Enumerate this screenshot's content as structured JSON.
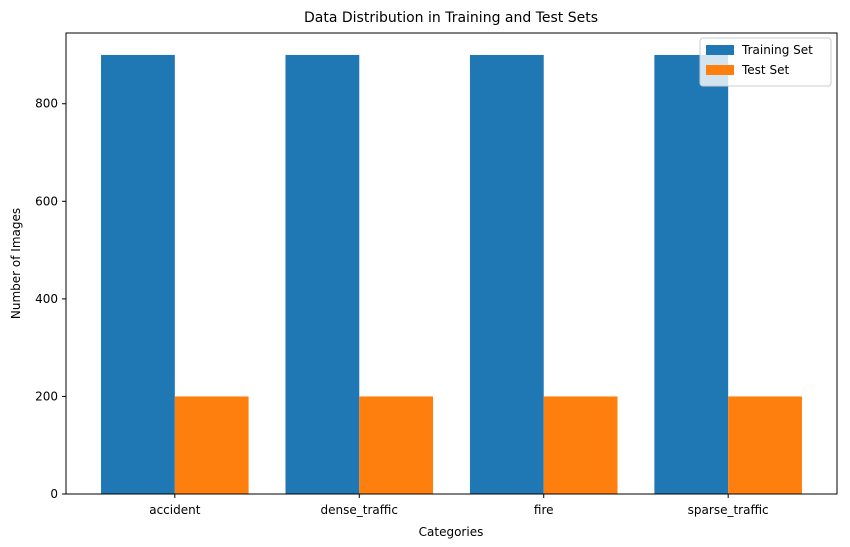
{
  "chart_data": {
    "type": "bar",
    "title": "Data Distribution in Training and Test Sets",
    "xlabel": "Categories",
    "ylabel": "Number of Images",
    "categories": [
      "accident",
      "dense_traffic",
      "fire",
      "sparse_traffic"
    ],
    "series": [
      {
        "name": "Training Set",
        "values": [
          900,
          900,
          900,
          900
        ],
        "color": "#1f77b4"
      },
      {
        "name": "Test Set",
        "values": [
          200,
          200,
          200,
          200
        ],
        "color": "#ff7f0e"
      }
    ],
    "ylim": [
      0,
      945
    ],
    "yticks": [
      0,
      200,
      400,
      600,
      800
    ],
    "grid": false,
    "legend_position": "top-right"
  }
}
